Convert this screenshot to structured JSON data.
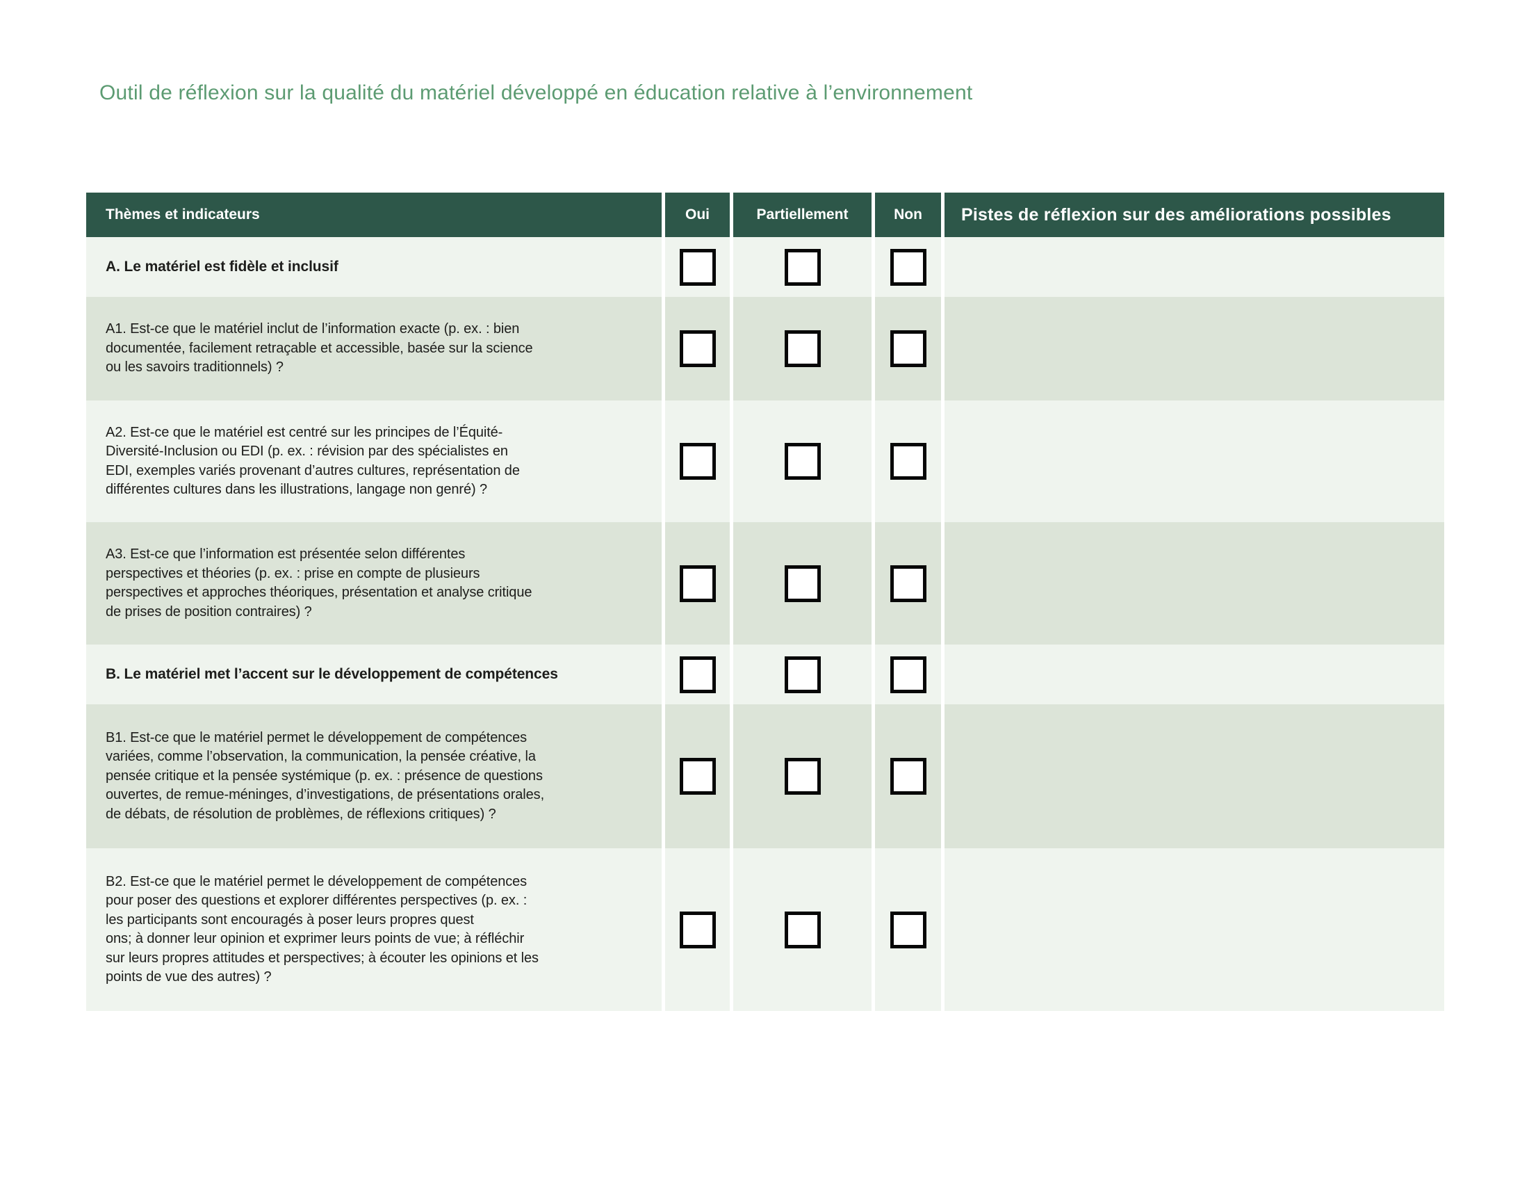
{
  "title": "Outil de réflexion sur la qualité du matériel développé en éducation relative à l’environnement",
  "colors": {
    "title_green": "#5C9B72",
    "header_bg": "#2D5749",
    "header_text": "#FFFFFF",
    "row_light": "#EFF4EE",
    "row_dark": "#DCE4D8",
    "body_text": "#1D1D1B",
    "checkbox_border": "#070707",
    "checkbox_fill": "#FFFFFF"
  },
  "table": {
    "headers": {
      "themes": "Thèmes et indicateurs",
      "oui": "Oui",
      "partiellement": "Partiellement",
      "non": "Non",
      "pistes": "Pistes de réflexion sur des améliorations possibles"
    },
    "checkbox_options": [
      "Oui",
      "Partiellement",
      "Non"
    ],
    "rows": [
      {
        "id": "A",
        "kind": "section",
        "text": "A. Le matériel est fidèle et inclusif",
        "checkboxes": {
          "oui": false,
          "partiellement": false,
          "non": false
        },
        "pistes": ""
      },
      {
        "id": "A1",
        "kind": "question",
        "text": "A1. Est-ce que le matériel inclut de l’information exacte (p. ex. : bien\ndocumentée, facilement retraçable et accessible, basée sur la science\nou les savoirs traditionnels) ?",
        "checkboxes": {
          "oui": false,
          "partiellement": false,
          "non": false
        },
        "pistes": ""
      },
      {
        "id": "A2",
        "kind": "question",
        "text": "A2. Est-ce que le matériel est centré sur les principes de l’Équité-\nDiversité-Inclusion ou EDI (p. ex. : révision par des spécialistes en\nEDI, exemples variés provenant d’autres cultures, représentation de\ndifférentes cultures dans les illustrations, langage non genré) ?",
        "checkboxes": {
          "oui": false,
          "partiellement": false,
          "non": false
        },
        "pistes": ""
      },
      {
        "id": "A3",
        "kind": "question",
        "text": "A3. Est-ce que l’information est présentée selon différentes\nperspectives et théories (p. ex. : prise en compte de plusieurs\nperspectives et approches théoriques, présentation et analyse critique\nde prises de position contraires) ?",
        "checkboxes": {
          "oui": false,
          "partiellement": false,
          "non": false
        },
        "pistes": ""
      },
      {
        "id": "B",
        "kind": "section",
        "text": "B. Le matériel met l’accent sur le développement de compétences",
        "checkboxes": {
          "oui": false,
          "partiellement": false,
          "non": false
        },
        "pistes": ""
      },
      {
        "id": "B1",
        "kind": "question",
        "text": "B1. Est-ce que le matériel permet le développement de compétences\nvariées, comme l’observation, la communication, la pensée créative, la\npensée critique et la pensée systémique (p. ex. : présence de questions\nouvertes, de remue-méninges, d’investigations, de présentations orales,\nde débats, de résolution de problèmes, de réflexions critiques) ?",
        "checkboxes": {
          "oui": false,
          "partiellement": false,
          "non": false
        },
        "pistes": ""
      },
      {
        "id": "B2",
        "kind": "question",
        "text": "B2. Est-ce que le matériel permet le développement de compétences\npour poser des questions et explorer différentes perspectives (p. ex. :\nles participants sont encouragés à poser leurs propres quest\nons; à donner leur opinion et exprimer leurs points de vue; à réfléchir\nsur leurs propres attitudes et perspectives; à écouter les opinions et les\npoints de vue des autres) ?",
        "checkboxes": {
          "oui": false,
          "partiellement": false,
          "non": false
        },
        "pistes": ""
      }
    ]
  }
}
